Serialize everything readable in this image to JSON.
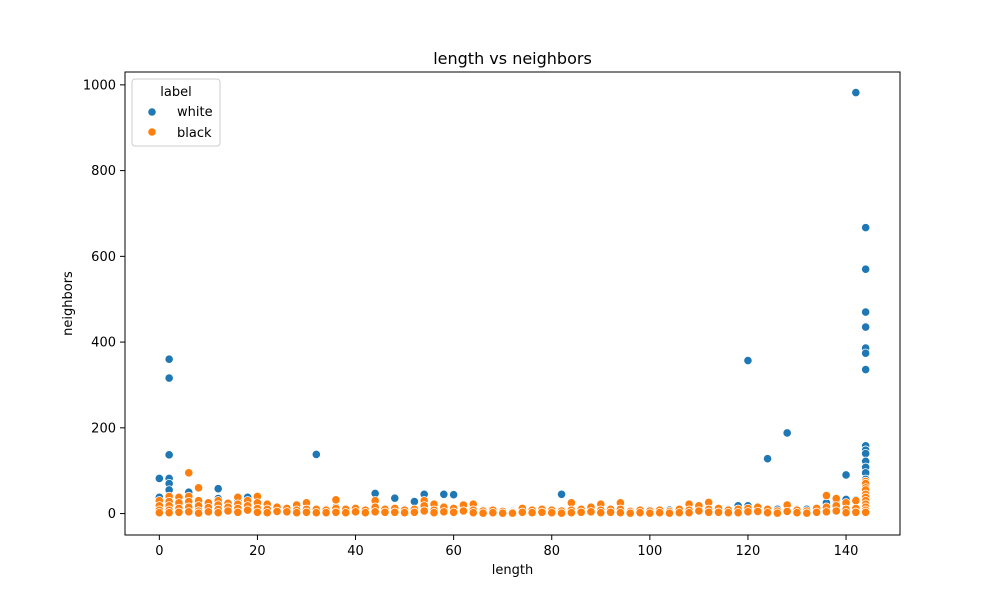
{
  "chart_data": {
    "type": "scatter",
    "title": "length vs neighbors",
    "xlabel": "length",
    "ylabel": "neighbors",
    "xlim": [
      -7,
      151
    ],
    "ylim": [
      -50,
      1030
    ],
    "xticks": [
      0,
      20,
      40,
      60,
      80,
      100,
      120,
      140
    ],
    "yticks": [
      0,
      200,
      400,
      600,
      800,
      1000
    ],
    "grid": false,
    "legend": {
      "title": "label",
      "position": "top-left"
    },
    "series": [
      {
        "name": "white",
        "color": "#1f77b4",
        "points": [
          [
            0,
            82
          ],
          [
            0,
            38
          ],
          [
            0,
            28
          ],
          [
            0,
            15
          ],
          [
            0,
            5
          ],
          [
            2,
            360
          ],
          [
            2,
            316
          ],
          [
            2,
            137
          ],
          [
            2,
            82
          ],
          [
            2,
            70
          ],
          [
            2,
            55
          ],
          [
            2,
            40
          ],
          [
            4,
            30
          ],
          [
            6,
            50
          ],
          [
            8,
            25
          ],
          [
            10,
            20
          ],
          [
            12,
            58
          ],
          [
            12,
            35
          ],
          [
            14,
            25
          ],
          [
            16,
            30
          ],
          [
            18,
            38
          ],
          [
            20,
            25
          ],
          [
            22,
            20
          ],
          [
            24,
            15
          ],
          [
            26,
            10
          ],
          [
            28,
            15
          ],
          [
            30,
            10
          ],
          [
            32,
            138
          ],
          [
            34,
            10
          ],
          [
            36,
            15
          ],
          [
            38,
            10
          ],
          [
            40,
            10
          ],
          [
            42,
            8
          ],
          [
            44,
            47
          ],
          [
            46,
            10
          ],
          [
            48,
            36
          ],
          [
            50,
            10
          ],
          [
            52,
            28
          ],
          [
            54,
            45
          ],
          [
            56,
            10
          ],
          [
            58,
            45
          ],
          [
            60,
            44
          ],
          [
            62,
            10
          ],
          [
            64,
            15
          ],
          [
            66,
            8
          ],
          [
            68,
            8
          ],
          [
            70,
            6
          ],
          [
            72,
            5
          ],
          [
            74,
            10
          ],
          [
            76,
            8
          ],
          [
            78,
            8
          ],
          [
            80,
            8
          ],
          [
            82,
            45
          ],
          [
            84,
            10
          ],
          [
            86,
            8
          ],
          [
            88,
            10
          ],
          [
            90,
            10
          ],
          [
            92,
            8
          ],
          [
            94,
            10
          ],
          [
            96,
            6
          ],
          [
            98,
            6
          ],
          [
            100,
            8
          ],
          [
            102,
            6
          ],
          [
            104,
            8
          ],
          [
            106,
            8
          ],
          [
            108,
            10
          ],
          [
            110,
            10
          ],
          [
            112,
            10
          ],
          [
            114,
            10
          ],
          [
            116,
            10
          ],
          [
            118,
            18
          ],
          [
            120,
            357
          ],
          [
            120,
            18
          ],
          [
            122,
            12
          ],
          [
            124,
            128
          ],
          [
            126,
            10
          ],
          [
            128,
            188
          ],
          [
            130,
            10
          ],
          [
            132,
            10
          ],
          [
            134,
            10
          ],
          [
            136,
            25
          ],
          [
            138,
            30
          ],
          [
            140,
            90
          ],
          [
            140,
            33
          ],
          [
            142,
            982
          ],
          [
            142,
            32
          ],
          [
            144,
            667
          ],
          [
            144,
            570
          ],
          [
            144,
            470
          ],
          [
            144,
            435
          ],
          [
            144,
            386
          ],
          [
            144,
            374
          ],
          [
            144,
            336
          ],
          [
            144,
            158
          ],
          [
            144,
            148
          ],
          [
            144,
            140
          ],
          [
            144,
            122
          ],
          [
            144,
            108
          ],
          [
            144,
            95
          ],
          [
            144,
            80
          ],
          [
            144,
            65
          ],
          [
            144,
            50
          ],
          [
            144,
            35
          ]
        ]
      },
      {
        "name": "black",
        "color": "#ff7f0e",
        "points": [
          [
            0,
            30
          ],
          [
            0,
            18
          ],
          [
            0,
            8
          ],
          [
            0,
            2
          ],
          [
            2,
            40
          ],
          [
            2,
            28
          ],
          [
            2,
            18
          ],
          [
            2,
            8
          ],
          [
            2,
            2
          ],
          [
            4,
            38
          ],
          [
            4,
            25
          ],
          [
            4,
            12
          ],
          [
            4,
            3
          ],
          [
            6,
            95
          ],
          [
            6,
            40
          ],
          [
            6,
            28
          ],
          [
            6,
            15
          ],
          [
            6,
            4
          ],
          [
            8,
            60
          ],
          [
            8,
            30
          ],
          [
            8,
            18
          ],
          [
            8,
            6
          ],
          [
            8,
            1
          ],
          [
            10,
            25
          ],
          [
            10,
            14
          ],
          [
            10,
            4
          ],
          [
            12,
            30
          ],
          [
            12,
            20
          ],
          [
            12,
            10
          ],
          [
            12,
            2
          ],
          [
            14,
            24
          ],
          [
            14,
            15
          ],
          [
            14,
            6
          ],
          [
            16,
            38
          ],
          [
            16,
            22
          ],
          [
            16,
            12
          ],
          [
            16,
            3
          ],
          [
            18,
            30
          ],
          [
            18,
            18
          ],
          [
            18,
            8
          ],
          [
            20,
            40
          ],
          [
            20,
            25
          ],
          [
            20,
            12
          ],
          [
            20,
            3
          ],
          [
            22,
            22
          ],
          [
            22,
            10
          ],
          [
            22,
            2
          ],
          [
            24,
            15
          ],
          [
            24,
            5
          ],
          [
            26,
            12
          ],
          [
            26,
            4
          ],
          [
            28,
            20
          ],
          [
            28,
            8
          ],
          [
            28,
            2
          ],
          [
            30,
            25
          ],
          [
            30,
            10
          ],
          [
            30,
            3
          ],
          [
            32,
            10
          ],
          [
            32,
            2
          ],
          [
            34,
            8
          ],
          [
            34,
            2
          ],
          [
            36,
            32
          ],
          [
            36,
            12
          ],
          [
            36,
            3
          ],
          [
            38,
            10
          ],
          [
            38,
            2
          ],
          [
            40,
            12
          ],
          [
            40,
            4
          ],
          [
            42,
            8
          ],
          [
            42,
            2
          ],
          [
            44,
            30
          ],
          [
            44,
            15
          ],
          [
            44,
            4
          ],
          [
            46,
            10
          ],
          [
            46,
            3
          ],
          [
            48,
            12
          ],
          [
            48,
            3
          ],
          [
            50,
            8
          ],
          [
            50,
            2
          ],
          [
            52,
            10
          ],
          [
            52,
            3
          ],
          [
            54,
            30
          ],
          [
            54,
            18
          ],
          [
            54,
            6
          ],
          [
            56,
            22
          ],
          [
            56,
            8
          ],
          [
            56,
            2
          ],
          [
            58,
            15
          ],
          [
            58,
            4
          ],
          [
            60,
            12
          ],
          [
            60,
            3
          ],
          [
            62,
            20
          ],
          [
            62,
            6
          ],
          [
            64,
            22
          ],
          [
            64,
            8
          ],
          [
            64,
            2
          ],
          [
            66,
            6
          ],
          [
            66,
            1
          ],
          [
            68,
            8
          ],
          [
            68,
            2
          ],
          [
            70,
            5
          ],
          [
            70,
            1
          ],
          [
            72,
            3
          ],
          [
            72,
            1
          ],
          [
            74,
            12
          ],
          [
            74,
            3
          ],
          [
            76,
            8
          ],
          [
            76,
            2
          ],
          [
            78,
            10
          ],
          [
            78,
            3
          ],
          [
            80,
            8
          ],
          [
            80,
            2
          ],
          [
            82,
            6
          ],
          [
            82,
            1
          ],
          [
            84,
            25
          ],
          [
            84,
            8
          ],
          [
            84,
            2
          ],
          [
            86,
            10
          ],
          [
            86,
            3
          ],
          [
            88,
            15
          ],
          [
            88,
            4
          ],
          [
            90,
            22
          ],
          [
            90,
            8
          ],
          [
            90,
            2
          ],
          [
            92,
            10
          ],
          [
            92,
            3
          ],
          [
            94,
            25
          ],
          [
            94,
            10
          ],
          [
            94,
            2
          ],
          [
            96,
            5
          ],
          [
            96,
            1
          ],
          [
            98,
            8
          ],
          [
            98,
            2
          ],
          [
            100,
            6
          ],
          [
            100,
            1
          ],
          [
            102,
            8
          ],
          [
            102,
            2
          ],
          [
            104,
            5
          ],
          [
            104,
            1
          ],
          [
            106,
            10
          ],
          [
            106,
            2
          ],
          [
            108,
            22
          ],
          [
            108,
            8
          ],
          [
            108,
            2
          ],
          [
            110,
            18
          ],
          [
            110,
            6
          ],
          [
            112,
            26
          ],
          [
            112,
            10
          ],
          [
            112,
            3
          ],
          [
            114,
            12
          ],
          [
            114,
            3
          ],
          [
            116,
            8
          ],
          [
            116,
            2
          ],
          [
            118,
            10
          ],
          [
            118,
            2
          ],
          [
            120,
            12
          ],
          [
            120,
            4
          ],
          [
            122,
            15
          ],
          [
            122,
            5
          ],
          [
            124,
            10
          ],
          [
            124,
            2
          ],
          [
            126,
            6
          ],
          [
            126,
            1
          ],
          [
            128,
            20
          ],
          [
            128,
            5
          ],
          [
            130,
            8
          ],
          [
            130,
            2
          ],
          [
            132,
            6
          ],
          [
            132,
            1
          ],
          [
            134,
            12
          ],
          [
            134,
            3
          ],
          [
            136,
            42
          ],
          [
            136,
            15
          ],
          [
            136,
            4
          ],
          [
            138,
            35
          ],
          [
            138,
            18
          ],
          [
            138,
            6
          ],
          [
            140,
            25
          ],
          [
            140,
            10
          ],
          [
            140,
            2
          ],
          [
            142,
            30
          ],
          [
            142,
            12
          ],
          [
            142,
            3
          ],
          [
            144,
            75
          ],
          [
            144,
            70
          ],
          [
            144,
            60
          ],
          [
            144,
            55
          ],
          [
            144,
            45
          ],
          [
            144,
            38
          ],
          [
            144,
            30
          ],
          [
            144,
            22
          ],
          [
            144,
            15
          ],
          [
            144,
            8
          ],
          [
            144,
            3
          ]
        ]
      }
    ]
  }
}
